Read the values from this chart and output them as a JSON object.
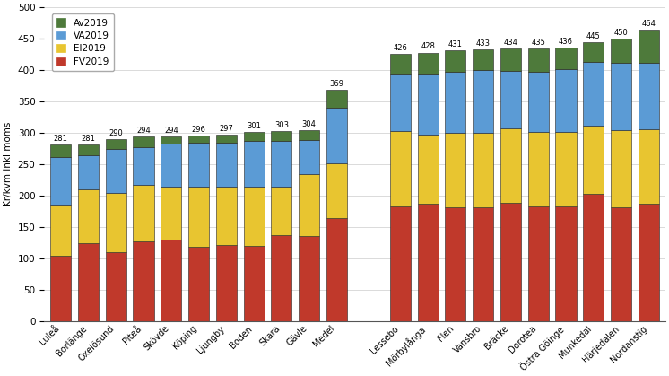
{
  "categories": [
    "Luleå",
    "Borlänge",
    "Oxelösund",
    "Piteå",
    "Skövde",
    "Köping",
    "Ljungby",
    "Boden",
    "Skara",
    "Gävle",
    "Medel",
    "Lessebo",
    "Mörbylånga",
    "Flen",
    "Vansbro",
    "Bräcke",
    "Dorotea",
    "Östra Göinge",
    "Munkedal",
    "Härjedalen",
    "Nordanstig"
  ],
  "totals": [
    281,
    281,
    290,
    294,
    294,
    296,
    297,
    301,
    303,
    304,
    369,
    426,
    428,
    431,
    433,
    434,
    435,
    436,
    445,
    450,
    464
  ],
  "FV2019": [
    105,
    125,
    110,
    128,
    130,
    119,
    122,
    120,
    137,
    136,
    165,
    183,
    188,
    182,
    182,
    189,
    183,
    183,
    203,
    182,
    188
  ],
  "El2019": [
    80,
    85,
    95,
    90,
    85,
    95,
    93,
    95,
    78,
    98,
    87,
    120,
    110,
    118,
    118,
    118,
    118,
    118,
    108,
    122,
    118
  ],
  "VA2019": [
    77,
    55,
    70,
    60,
    68,
    70,
    70,
    72,
    72,
    55,
    88,
    90,
    95,
    97,
    100,
    92,
    97,
    100,
    102,
    108,
    105
  ],
  "Av2019": [
    19,
    16,
    15,
    16,
    11,
    12,
    12,
    14,
    16,
    15,
    29,
    33,
    35,
    34,
    33,
    35,
    37,
    35,
    32,
    38,
    53
  ],
  "medel_index": 10,
  "colors": {
    "FV2019": "#c0392b",
    "El2019": "#e8c530",
    "VA2019": "#5b9bd5",
    "Av2019": "#4e7a3b"
  },
  "ylabel": "Kr/kvm inkl moms",
  "ylim": [
    0,
    500
  ],
  "yticks": [
    0,
    50,
    100,
    150,
    200,
    250,
    300,
    350,
    400,
    450,
    500
  ],
  "bar_width": 0.75,
  "edgecolor": "#222222",
  "figsize": [
    7.46,
    4.19
  ],
  "dpi": 100
}
